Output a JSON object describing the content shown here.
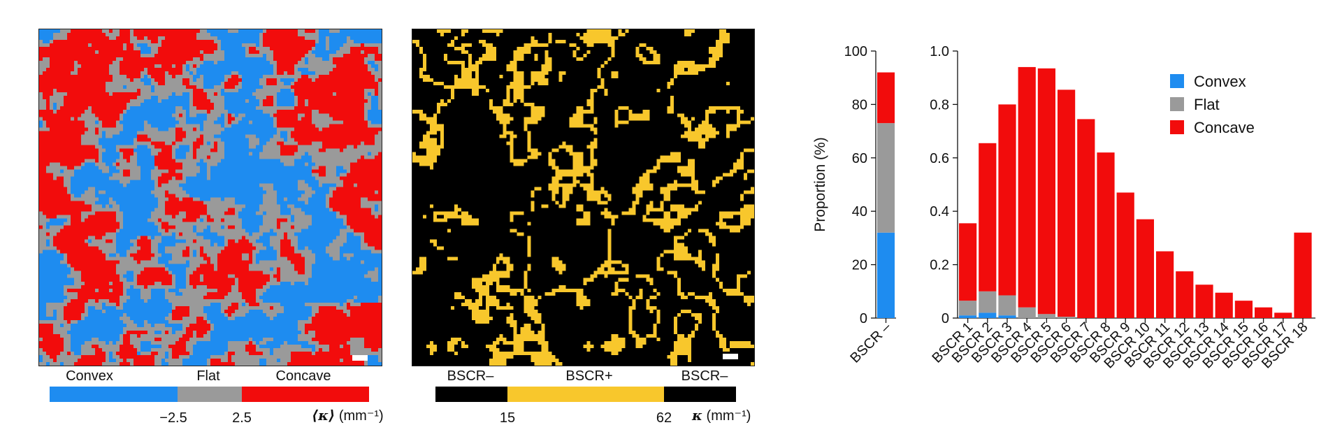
{
  "panel_a": {
    "labels": [
      "Convex",
      "Flat",
      "Concave"
    ],
    "ticks": [
      "−2.5",
      "2.5"
    ],
    "unit_symbol": "⟨κ⟩",
    "unit_text": " (mm⁻¹)",
    "colors": {
      "convex": "#1e8cf0",
      "flat": "#9a9a9a",
      "concave": "#f20c0c"
    }
  },
  "panel_b": {
    "labels": [
      "BSCR–",
      "BSCR+",
      "BSCR–"
    ],
    "ticks": [
      "15",
      "62"
    ],
    "unit_symbol": "κ",
    "unit_text": " (mm⁻¹)",
    "colors": {
      "bscr_neg": "#000000",
      "bscr_pos": "#f8c72c"
    }
  },
  "chart_data": [
    {
      "type": "bar",
      "stacked": true,
      "categories": [
        "BSCR –"
      ],
      "ylabel": "Proportion (%)",
      "ylim": [
        0,
        100
      ],
      "yticks": [
        "0",
        "20",
        "40",
        "60",
        "80",
        "100"
      ],
      "series": [
        {
          "name": "Convex",
          "color": "#1e8cf0",
          "values": [
            32
          ]
        },
        {
          "name": "Flat",
          "color": "#9a9a9a",
          "values": [
            41
          ]
        },
        {
          "name": "Concave",
          "color": "#f20c0c",
          "values": [
            19
          ]
        }
      ]
    },
    {
      "type": "bar",
      "stacked": true,
      "categories": [
        "BSCR 1",
        "BSCR 2",
        "BSCR 3",
        "BSCR 4",
        "BSCR 5",
        "BSCR 6",
        "BSCR 7",
        "BSCR 8",
        "BSCR 9",
        "BSCR 10",
        "BSCR 11",
        "BSCR 12",
        "BSCR 13",
        "BSCR 14",
        "BSCR 15",
        "BSCR 16",
        "BSCR 17",
        "BSCR 18"
      ],
      "ylim": [
        0,
        1.0
      ],
      "yticks": [
        "0",
        "0.2",
        "0.4",
        "0.6",
        "0.8",
        "1.0"
      ],
      "legend_position": "top-right",
      "series": [
        {
          "name": "Convex",
          "color": "#1e8cf0",
          "values": [
            0.01,
            0.02,
            0.01,
            0.0,
            0.0,
            0.0,
            0,
            0,
            0,
            0,
            0,
            0,
            0,
            0,
            0,
            0,
            0,
            0
          ]
        },
        {
          "name": "Flat",
          "color": "#9a9a9a",
          "values": [
            0.055,
            0.08,
            0.075,
            0.04,
            0.015,
            0.005,
            0,
            0,
            0,
            0,
            0,
            0,
            0,
            0,
            0,
            0,
            0,
            0
          ]
        },
        {
          "name": "Concave",
          "color": "#f20c0c",
          "values": [
            0.29,
            0.555,
            0.715,
            0.9,
            0.92,
            0.85,
            0.745,
            0.62,
            0.47,
            0.37,
            0.25,
            0.175,
            0.125,
            0.095,
            0.065,
            0.04,
            0.02,
            0.32
          ]
        }
      ]
    }
  ]
}
